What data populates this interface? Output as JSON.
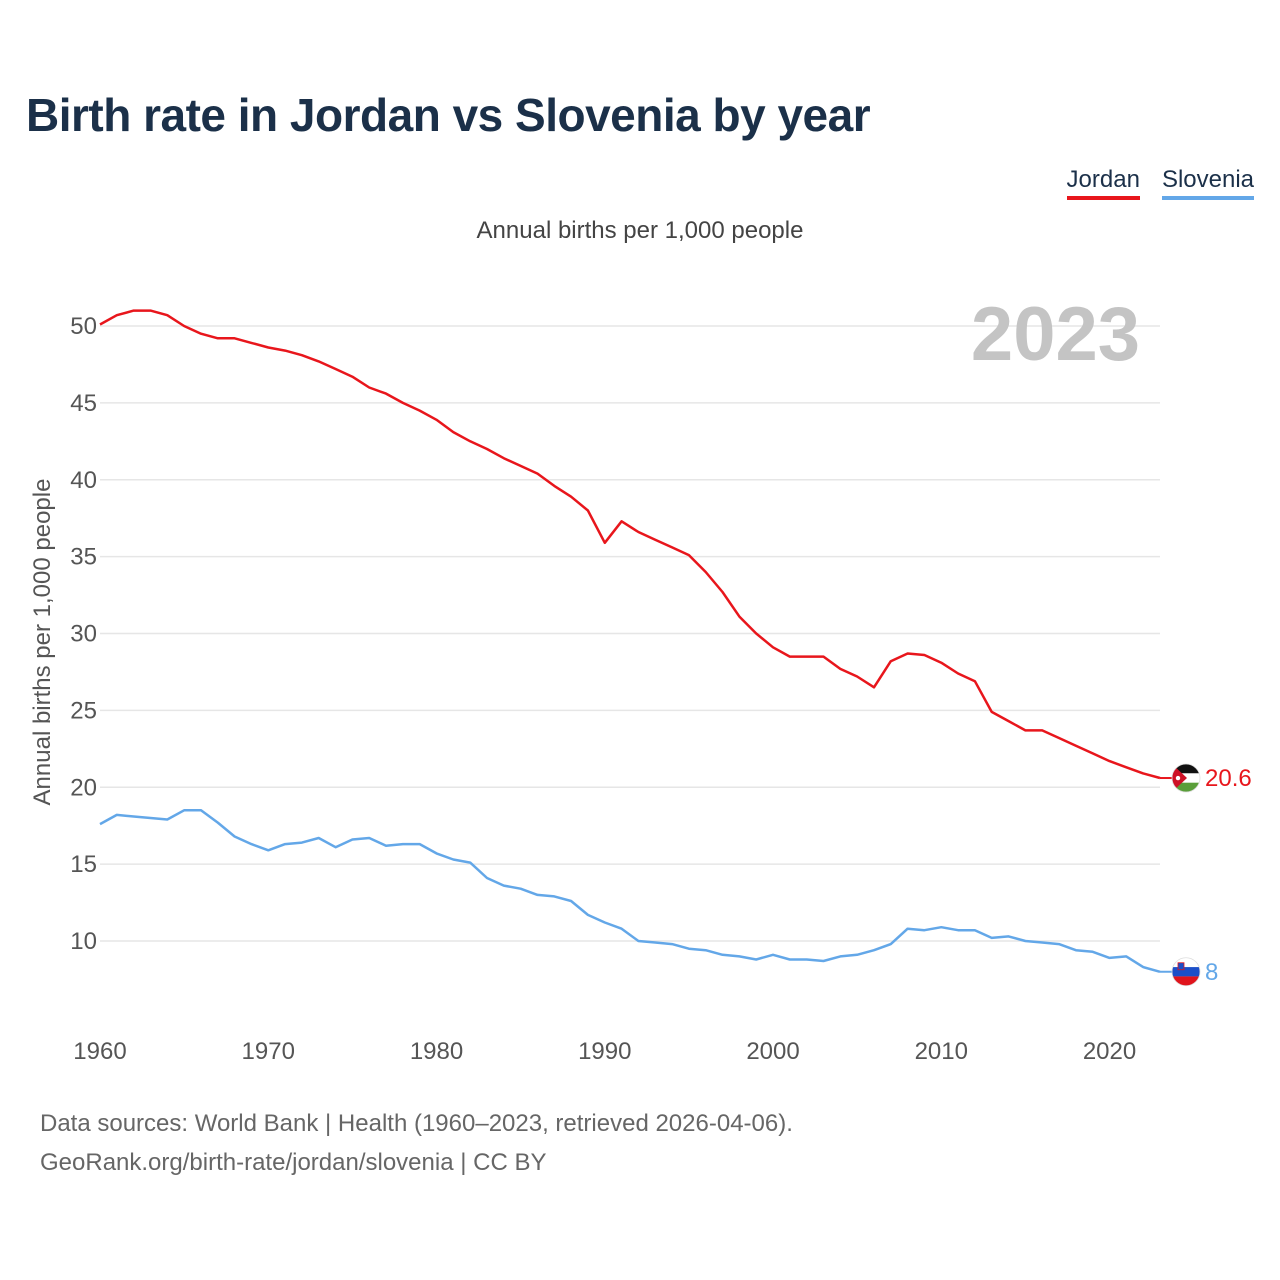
{
  "title": "Birth rate in Jordan vs Slovenia by year",
  "legend": {
    "jordan_label": "Jordan",
    "slovenia_label": "Slovenia"
  },
  "subtitle": "Annual births per 1,000 people",
  "year_badge": "2023",
  "footer": {
    "line1": "Data sources: World Bank | Health (1960–2023, retrieved 2026-04-06).",
    "line2": "GeoRank.org/birth-rate/jordan/slovenia | CC BY"
  },
  "colors": {
    "jordan": "#e8161c",
    "slovenia": "#63a7e8",
    "title": "#1b3049",
    "grid": "#e6e6e6",
    "badge": "#c4c4c4"
  },
  "chart_data": {
    "type": "line",
    "title": "Birth rate in Jordan vs Slovenia by year",
    "xlabel": "",
    "ylabel": "Annual births per 1,000 people",
    "xlim": [
      1960,
      2023
    ],
    "ylim": [
      5,
      53
    ],
    "xticks": [
      1960,
      1970,
      1980,
      1990,
      2000,
      2010,
      2020
    ],
    "yticks": [
      10,
      15,
      20,
      25,
      30,
      35,
      40,
      45,
      50
    ],
    "grid": true,
    "legend_position": "top-right",
    "x": [
      1960,
      1961,
      1962,
      1963,
      1964,
      1965,
      1966,
      1967,
      1968,
      1969,
      1970,
      1971,
      1972,
      1973,
      1974,
      1975,
      1976,
      1977,
      1978,
      1979,
      1980,
      1981,
      1982,
      1983,
      1984,
      1985,
      1986,
      1987,
      1988,
      1989,
      1990,
      1991,
      1992,
      1993,
      1994,
      1995,
      1996,
      1997,
      1998,
      1999,
      2000,
      2001,
      2002,
      2003,
      2004,
      2005,
      2006,
      2007,
      2008,
      2009,
      2010,
      2011,
      2012,
      2013,
      2014,
      2015,
      2016,
      2017,
      2018,
      2019,
      2020,
      2021,
      2022,
      2023
    ],
    "series": [
      {
        "name": "Jordan",
        "color": "#e8161c",
        "end_label": "20.6",
        "values": [
          50.1,
          50.7,
          51.0,
          51.0,
          50.7,
          50.0,
          49.5,
          49.2,
          49.2,
          48.9,
          48.6,
          48.4,
          48.1,
          47.7,
          47.2,
          46.7,
          46.0,
          45.6,
          45.0,
          44.5,
          43.9,
          43.1,
          42.5,
          42.0,
          41.4,
          40.9,
          40.4,
          39.6,
          38.9,
          38.0,
          35.9,
          37.3,
          36.6,
          36.1,
          35.6,
          35.1,
          34.0,
          32.7,
          31.1,
          30.0,
          29.1,
          28.5,
          28.5,
          28.5,
          27.7,
          27.2,
          26.5,
          28.2,
          28.7,
          28.6,
          28.1,
          27.4,
          26.9,
          24.9,
          24.3,
          23.7,
          23.7,
          23.2,
          22.7,
          22.2,
          21.7,
          21.3,
          20.9,
          20.6
        ]
      },
      {
        "name": "Slovenia",
        "color": "#63a7e8",
        "end_label": "8",
        "values": [
          17.6,
          18.2,
          18.1,
          18.0,
          17.9,
          18.5,
          18.5,
          17.7,
          16.8,
          16.3,
          15.9,
          16.3,
          16.4,
          16.7,
          16.1,
          16.6,
          16.7,
          16.2,
          16.3,
          16.3,
          15.7,
          15.3,
          15.1,
          14.1,
          13.6,
          13.4,
          13.0,
          12.9,
          12.6,
          11.7,
          11.2,
          10.8,
          10.0,
          9.9,
          9.8,
          9.5,
          9.4,
          9.1,
          9.0,
          8.8,
          9.1,
          8.8,
          8.8,
          8.7,
          9.0,
          9.1,
          9.4,
          9.8,
          10.8,
          10.7,
          10.9,
          10.7,
          10.7,
          10.2,
          10.3,
          10.0,
          9.9,
          9.8,
          9.4,
          9.3,
          8.9,
          9.0,
          8.3,
          8.0
        ]
      }
    ]
  }
}
